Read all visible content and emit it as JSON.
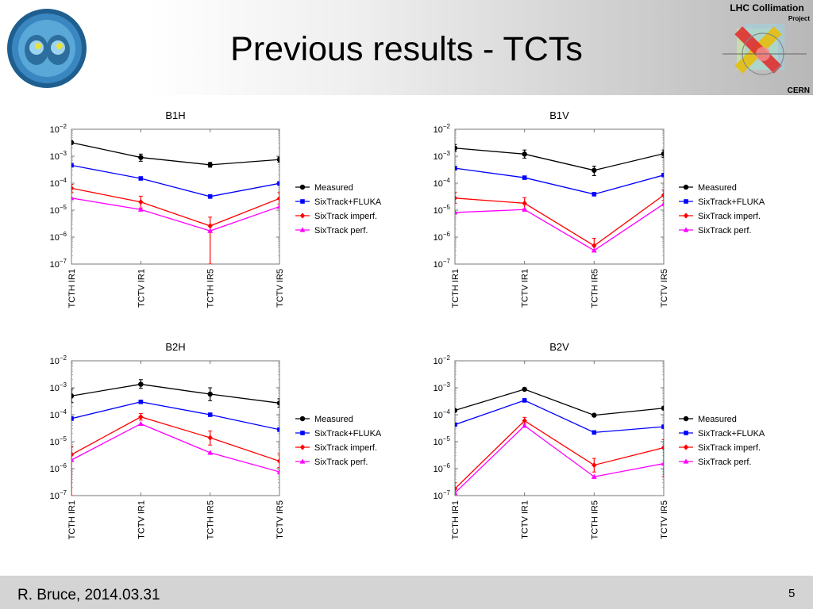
{
  "slide": {
    "title": "Previous results - TCTs",
    "footer_author": "R. Bruce, 2014.03.31",
    "page_number": "5"
  },
  "logo_right": {
    "line1": "LHC Collimation",
    "line2": "Project",
    "line3": "CERN"
  },
  "legend": [
    "Measured",
    "SixTrack+FLUKA",
    "SixTrack imperf.",
    "SixTrack perf."
  ],
  "series_colors": [
    "#000000",
    "#0000ff",
    "#ff0000",
    "#ff00ff"
  ],
  "chart_data": [
    {
      "type": "line",
      "title": "B1H",
      "categories": [
        "TCTH IR1",
        "TCTV IR1",
        "TCTH IR5",
        "TCTV IR5"
      ],
      "yscale": "log",
      "ylim": [
        1e-07,
        0.01
      ],
      "legend_position": "right",
      "series": [
        {
          "name": "Measured",
          "values": [
            0.0032,
            0.0009,
            0.00048,
            0.00075
          ],
          "err": [
            [
              0.003,
              0.0034
            ],
            [
              0.00065,
              0.0012
            ],
            [
              0.00039,
              0.00059
            ],
            [
              0.0006,
              0.00093
            ]
          ]
        },
        {
          "name": "SixTrack+FLUKA",
          "values": [
            0.00046,
            0.00015,
            3.2e-05,
            9.8e-05
          ]
        },
        {
          "name": "SixTrack imperf.",
          "values": [
            6.5e-05,
            2e-05,
            2.6e-06,
            2.7e-05
          ],
          "err": [
            [
              4.5e-05,
              9e-05
            ],
            [
              1.2e-05,
              3.3e-05
            ],
            [
              1e-07,
              5.5e-06
            ],
            [
              1.7e-05,
              4.5e-05
            ]
          ]
        },
        {
          "name": "SixTrack perf.",
          "values": [
            2.8e-05,
            1.05e-05,
            1.7e-06,
            1.35e-05
          ]
        }
      ]
    },
    {
      "type": "line",
      "title": "B1V",
      "categories": [
        "TCTH IR1",
        "TCTV IR1",
        "TCTH IR5",
        "TCTV IR5"
      ],
      "yscale": "log",
      "ylim": [
        1e-07,
        0.01
      ],
      "legend_position": "right",
      "series": [
        {
          "name": "Measured",
          "values": [
            0.002,
            0.0012,
            0.0003,
            0.00125
          ],
          "err": [
            [
              0.0015,
              0.0027
            ],
            [
              0.00085,
              0.0017
            ],
            [
              0.00019,
              0.00043
            ],
            [
              0.0009,
              0.0017
            ]
          ]
        },
        {
          "name": "SixTrack+FLUKA",
          "values": [
            0.00036,
            0.00016,
            3.9e-05,
            0.0002
          ]
        },
        {
          "name": "SixTrack imperf.",
          "values": [
            2.8e-05,
            1.8e-05,
            4.8e-07,
            3.6e-05
          ],
          "err": [
            [
              1.8e-05,
              4.5e-05
            ],
            [
              1.1e-05,
              2.9e-05
            ],
            [
              2.8e-07,
              9e-07
            ],
            [
              2.3e-05,
              5.5e-05
            ]
          ]
        },
        {
          "name": "SixTrack perf.",
          "values": [
            8.2e-06,
            1.05e-05,
            3.2e-07,
            1.7e-05
          ]
        }
      ]
    },
    {
      "type": "line",
      "title": "B2H",
      "categories": [
        "TCTH IR1",
        "TCTV IR1",
        "TCTH IR5",
        "TCTV IR5"
      ],
      "yscale": "log",
      "ylim": [
        1e-07,
        0.01
      ],
      "legend_position": "right",
      "series": [
        {
          "name": "Measured",
          "values": [
            0.0005,
            0.00135,
            0.00058,
            0.00027
          ],
          "err": [
            [
              0.00028,
              0.0009
            ],
            [
              0.00095,
              0.002
            ],
            [
              0.00033,
              0.001
            ],
            [
              0.00019,
              0.00039
            ]
          ]
        },
        {
          "name": "SixTrack+FLUKA",
          "values": [
            7.2e-05,
            0.0003,
            0.0001,
            2.8e-05
          ]
        },
        {
          "name": "SixTrack imperf.",
          "values": [
            3.3e-06,
            8.3e-05,
            1.4e-05,
            1.9e-06
          ],
          "err": [
            [
              1e-07,
              6.5e-06
            ],
            [
              6.3e-05,
              0.00011
            ],
            [
              7.5e-06,
              2.5e-05
            ],
            [
              1.1e-06,
              3.5e-06
            ]
          ]
        },
        {
          "name": "SixTrack perf.",
          "values": [
            2.1e-06,
            4.6e-05,
            3.9e-06,
            7.6e-07
          ]
        }
      ]
    },
    {
      "type": "line",
      "title": "B2V",
      "categories": [
        "TCTH IR1",
        "TCTV IR1",
        "TCTH IR5",
        "TCTV IR5"
      ],
      "yscale": "log",
      "ylim": [
        1e-07,
        0.01
      ],
      "legend_position": "right",
      "series": [
        {
          "name": "Measured",
          "values": [
            0.000145,
            0.00088,
            9.6e-05,
            0.000175
          ],
          "err": [
            [
              0.00013,
              0.00016
            ],
            [
              0.00083,
              0.00094
            ],
            [
              8.8e-05,
              0.000105
            ],
            [
              0.00015,
              0.000205
            ]
          ]
        },
        {
          "name": "SixTrack+FLUKA",
          "values": [
            4.3e-05,
            0.00034,
            2.2e-05,
            3.6e-05
          ]
        },
        {
          "name": "SixTrack imperf.",
          "values": [
            1.8e-07,
            6e-05,
            1.35e-06,
            6e-06
          ],
          "err": [
            [
              1.1e-07,
              3e-07
            ],
            [
              4.5e-05,
              8e-05
            ],
            [
              7.5e-07,
              2.4e-06
            ],
            [
              5e-07,
              1.2e-05
            ]
          ]
        },
        {
          "name": "SixTrack perf.",
          "values": [
            1.25e-07,
            3.9e-05,
            5e-07,
            1.55e-06
          ]
        }
      ]
    }
  ]
}
